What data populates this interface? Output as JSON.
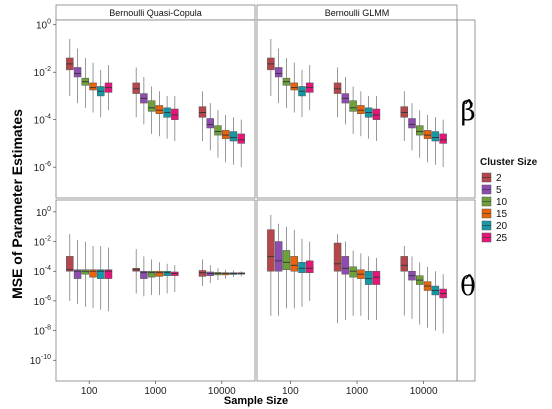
{
  "chart_data": {
    "type": "boxplot",
    "ylabel": "MSE of Parameter Estimates",
    "xlabel": "Sample Size",
    "y_scale": "log10",
    "ylim_exponent_top": [
      -7,
      0
    ],
    "ylim_exponent_bottom": [
      -11,
      0
    ],
    "x_categories": [
      "100",
      "1000",
      "10000"
    ],
    "column_panels": [
      "Bernoulli Quasi-Copula",
      "Bernoulli GLMM"
    ],
    "row_panels": [
      "β̂",
      "θ̂"
    ],
    "y_ticks_top": [
      "10^0",
      "10^-2",
      "10^-4",
      "10^-6"
    ],
    "y_ticks_bottom": [
      "10^0",
      "10^-2",
      "10^-4",
      "10^-6",
      "10^-8",
      "10^-10"
    ],
    "legend": {
      "title": "Cluster Size",
      "items": [
        {
          "label": "2",
          "color": "#B5464B"
        },
        {
          "label": "5",
          "color": "#8E4CB0"
        },
        {
          "label": "10",
          "color": "#6FA13A"
        },
        {
          "label": "15",
          "color": "#E8630A"
        },
        {
          "label": "20",
          "color": "#1597A6"
        },
        {
          "label": "25",
          "color": "#E6157A"
        }
      ]
    },
    "panels": [
      {
        "name": "Bernoulli Quasi-Copula / β̂",
        "groups": [
          {
            "x": "100",
            "boxes": [
              {
                "cluster": "2",
                "q1": -1.9,
                "median": -1.65,
                "q3": -1.4,
                "whisker_low": -3.0,
                "whisker_high": -0.6
              },
              {
                "cluster": "5",
                "q1": -2.2,
                "median": -2.05,
                "q3": -1.8,
                "whisker_low": -3.3,
                "whisker_high": -1.0
              },
              {
                "cluster": "10",
                "q1": -2.55,
                "median": -2.4,
                "q3": -2.25,
                "whisker_low": -3.5,
                "whisker_high": -1.4
              },
              {
                "cluster": "15",
                "q1": -2.75,
                "median": -2.65,
                "q3": -2.45,
                "whisker_low": -3.7,
                "whisker_high": -1.6
              },
              {
                "cluster": "20",
                "q1": -3.0,
                "median": -2.8,
                "q3": -2.6,
                "whisker_low": -3.9,
                "whisker_high": -1.9
              },
              {
                "cluster": "25",
                "q1": -2.85,
                "median": -2.65,
                "q3": -2.45,
                "whisker_low": -3.6,
                "whisker_high": -1.7
              }
            ]
          },
          {
            "x": "1000",
            "boxes": [
              {
                "cluster": "2",
                "q1": -2.9,
                "median": -2.7,
                "q3": -2.45,
                "whisker_low": -3.9,
                "whisker_high": -1.8
              },
              {
                "cluster": "5",
                "q1": -3.3,
                "median": -3.1,
                "q3": -2.9,
                "whisker_low": -4.2,
                "whisker_high": -2.2
              },
              {
                "cluster": "10",
                "q1": -3.65,
                "median": -3.5,
                "q3": -3.2,
                "whisker_low": -4.6,
                "whisker_high": -2.6
              },
              {
                "cluster": "15",
                "q1": -3.75,
                "median": -3.6,
                "q3": -3.4,
                "whisker_low": -4.7,
                "whisker_high": -2.8
              },
              {
                "cluster": "20",
                "q1": -3.9,
                "median": -3.7,
                "q3": -3.5,
                "whisker_low": -4.8,
                "whisker_high": -3.0
              },
              {
                "cluster": "25",
                "q1": -4.0,
                "median": -3.8,
                "q3": -3.55,
                "whisker_low": -4.9,
                "whisker_high": -3.0
              }
            ]
          },
          {
            "x": "10000",
            "boxes": [
              {
                "cluster": "2",
                "q1": -3.9,
                "median": -3.7,
                "q3": -3.45,
                "whisker_low": -4.9,
                "whisker_high": -2.8
              },
              {
                "cluster": "5",
                "q1": -4.35,
                "median": -4.2,
                "q3": -3.95,
                "whisker_low": -5.3,
                "whisker_high": -3.3
              },
              {
                "cluster": "10",
                "q1": -4.65,
                "median": -4.5,
                "q3": -4.25,
                "whisker_low": -5.6,
                "whisker_high": -3.6
              },
              {
                "cluster": "15",
                "q1": -4.8,
                "median": -4.65,
                "q3": -4.45,
                "whisker_low": -5.8,
                "whisker_high": -3.8
              },
              {
                "cluster": "20",
                "q1": -4.9,
                "median": -4.75,
                "q3": -4.5,
                "whisker_low": -5.9,
                "whisker_high": -3.9
              },
              {
                "cluster": "25",
                "q1": -5.0,
                "median": -4.85,
                "q3": -4.6,
                "whisker_low": -6.0,
                "whisker_high": -4.0
              }
            ]
          }
        ]
      },
      {
        "name": "Bernoulli GLMM / β̂",
        "groups": [
          {
            "x": "100",
            "boxes": [
              {
                "cluster": "2",
                "q1": -1.9,
                "median": -1.65,
                "q3": -1.4,
                "whisker_low": -3.0,
                "whisker_high": -0.6
              },
              {
                "cluster": "5",
                "q1": -2.2,
                "median": -2.05,
                "q3": -1.8,
                "whisker_low": -3.3,
                "whisker_high": -1.0
              },
              {
                "cluster": "10",
                "q1": -2.55,
                "median": -2.4,
                "q3": -2.25,
                "whisker_low": -3.5,
                "whisker_high": -1.4
              },
              {
                "cluster": "15",
                "q1": -2.75,
                "median": -2.65,
                "q3": -2.45,
                "whisker_low": -3.7,
                "whisker_high": -1.6
              },
              {
                "cluster": "20",
                "q1": -3.0,
                "median": -2.8,
                "q3": -2.6,
                "whisker_low": -3.9,
                "whisker_high": -1.9
              },
              {
                "cluster": "25",
                "q1": -2.85,
                "median": -2.65,
                "q3": -2.45,
                "whisker_low": -3.6,
                "whisker_high": -1.7
              }
            ]
          },
          {
            "x": "1000",
            "boxes": [
              {
                "cluster": "2",
                "q1": -2.9,
                "median": -2.7,
                "q3": -2.45,
                "whisker_low": -3.9,
                "whisker_high": -1.8
              },
              {
                "cluster": "5",
                "q1": -3.3,
                "median": -3.1,
                "q3": -2.9,
                "whisker_low": -4.2,
                "whisker_high": -2.2
              },
              {
                "cluster": "10",
                "q1": -3.65,
                "median": -3.5,
                "q3": -3.2,
                "whisker_low": -4.6,
                "whisker_high": -2.6
              },
              {
                "cluster": "15",
                "q1": -3.75,
                "median": -3.6,
                "q3": -3.4,
                "whisker_low": -4.7,
                "whisker_high": -2.8
              },
              {
                "cluster": "20",
                "q1": -3.9,
                "median": -3.7,
                "q3": -3.5,
                "whisker_low": -4.8,
                "whisker_high": -3.0
              },
              {
                "cluster": "25",
                "q1": -4.0,
                "median": -3.8,
                "q3": -3.55,
                "whisker_low": -4.9,
                "whisker_high": -3.0
              }
            ]
          },
          {
            "x": "10000",
            "boxes": [
              {
                "cluster": "2",
                "q1": -3.9,
                "median": -3.7,
                "q3": -3.45,
                "whisker_low": -4.9,
                "whisker_high": -2.8
              },
              {
                "cluster": "5",
                "q1": -4.35,
                "median": -4.2,
                "q3": -3.95,
                "whisker_low": -5.3,
                "whisker_high": -3.3
              },
              {
                "cluster": "10",
                "q1": -4.65,
                "median": -4.5,
                "q3": -4.25,
                "whisker_low": -5.6,
                "whisker_high": -3.6
              },
              {
                "cluster": "15",
                "q1": -4.8,
                "median": -4.65,
                "q3": -4.45,
                "whisker_low": -5.8,
                "whisker_high": -3.8
              },
              {
                "cluster": "20",
                "q1": -4.9,
                "median": -4.75,
                "q3": -4.5,
                "whisker_low": -5.9,
                "whisker_high": -3.9
              },
              {
                "cluster": "25",
                "q1": -5.0,
                "median": -4.85,
                "q3": -4.6,
                "whisker_low": -6.0,
                "whisker_high": -4.0
              }
            ]
          }
        ]
      },
      {
        "name": "Bernoulli Quasi-Copula / θ̂",
        "groups": [
          {
            "x": "100",
            "boxes": [
              {
                "cluster": "2",
                "q1": -4.0,
                "median": -3.9,
                "q3": -3.0,
                "whisker_low": -6.0,
                "whisker_high": -1.5
              },
              {
                "cluster": "5",
                "q1": -4.5,
                "median": -4.0,
                "q3": -3.9,
                "whisker_low": -6.2,
                "whisker_high": -1.9
              },
              {
                "cluster": "10",
                "q1": -4.2,
                "median": -4.0,
                "q3": -3.9,
                "whisker_low": -6.4,
                "whisker_high": -2.0
              },
              {
                "cluster": "15",
                "q1": -4.4,
                "median": -4.0,
                "q3": -3.9,
                "whisker_low": -6.5,
                "whisker_high": -2.3
              },
              {
                "cluster": "20",
                "q1": -4.5,
                "median": -4.0,
                "q3": -3.9,
                "whisker_low": -6.6,
                "whisker_high": -2.3
              },
              {
                "cluster": "25",
                "q1": -4.5,
                "median": -4.0,
                "q3": -3.9,
                "whisker_low": -6.7,
                "whisker_high": -2.4
              }
            ]
          },
          {
            "x": "1000",
            "boxes": [
              {
                "cluster": "2",
                "q1": -4.0,
                "median": -3.9,
                "q3": -3.8,
                "whisker_low": -5.5,
                "whisker_high": -2.5
              },
              {
                "cluster": "5",
                "q1": -4.5,
                "median": -4.1,
                "q3": -4.0,
                "whisker_low": -5.7,
                "whisker_high": -3.0
              },
              {
                "cluster": "10",
                "q1": -4.4,
                "median": -4.1,
                "q3": -4.0,
                "whisker_low": -5.6,
                "whisker_high": -3.2
              },
              {
                "cluster": "15",
                "q1": -4.35,
                "median": -4.1,
                "q3": -4.0,
                "whisker_low": -5.6,
                "whisker_high": -3.4
              },
              {
                "cluster": "20",
                "q1": -4.3,
                "median": -4.1,
                "q3": -4.0,
                "whisker_low": -5.5,
                "whisker_high": -3.5
              },
              {
                "cluster": "25",
                "q1": -4.3,
                "median": -4.15,
                "q3": -4.05,
                "whisker_low": -5.4,
                "whisker_high": -3.6
              }
            ]
          },
          {
            "x": "10000",
            "boxes": [
              {
                "cluster": "2",
                "q1": -4.35,
                "median": -4.1,
                "q3": -3.95,
                "whisker_low": -5.0,
                "whisker_high": -3.2
              },
              {
                "cluster": "5",
                "q1": -4.3,
                "median": -4.15,
                "q3": -4.05,
                "whisker_low": -4.8,
                "whisker_high": -3.6
              },
              {
                "cluster": "10",
                "q1": -4.25,
                "median": -4.15,
                "q3": -4.08,
                "whisker_low": -4.6,
                "whisker_high": -3.8
              },
              {
                "cluster": "15",
                "q1": -4.25,
                "median": -4.15,
                "q3": -4.1,
                "whisker_low": -4.5,
                "whisker_high": -3.9
              },
              {
                "cluster": "20",
                "q1": -4.22,
                "median": -4.15,
                "q3": -4.1,
                "whisker_low": -4.4,
                "whisker_high": -3.95
              },
              {
                "cluster": "25",
                "q1": -4.2,
                "median": -4.15,
                "q3": -4.1,
                "whisker_low": -4.35,
                "whisker_high": -4.0
              }
            ]
          }
        ]
      },
      {
        "name": "Bernoulli GLMM / θ̂",
        "groups": [
          {
            "x": "100",
            "boxes": [
              {
                "cluster": "2",
                "q1": -4.0,
                "median": -3.0,
                "q3": -1.2,
                "whisker_low": -7.0,
                "whisker_high": -0.2
              },
              {
                "cluster": "5",
                "q1": -4.0,
                "median": -3.3,
                "q3": -2.0,
                "whisker_low": -7.0,
                "whisker_high": -0.8
              },
              {
                "cluster": "10",
                "q1": -3.9,
                "median": -3.4,
                "q3": -2.6,
                "whisker_low": -6.5,
                "whisker_high": -1.0
              },
              {
                "cluster": "15",
                "q1": -4.0,
                "median": -3.6,
                "q3": -3.0,
                "whisker_low": -6.5,
                "whisker_high": -1.2
              },
              {
                "cluster": "20",
                "q1": -4.1,
                "median": -3.8,
                "q3": -3.4,
                "whisker_low": -6.4,
                "whisker_high": -1.8
              },
              {
                "cluster": "25",
                "q1": -4.1,
                "median": -3.8,
                "q3": -3.3,
                "whisker_low": -6.0,
                "whisker_high": -2.0
              }
            ]
          },
          {
            "x": "1000",
            "boxes": [
              {
                "cluster": "2",
                "q1": -4.0,
                "median": -3.5,
                "q3": -2.1,
                "whisker_low": -7.5,
                "whisker_high": -1.5
              },
              {
                "cluster": "5",
                "q1": -4.2,
                "median": -3.8,
                "q3": -3.0,
                "whisker_low": -7.3,
                "whisker_high": -2.0
              },
              {
                "cluster": "10",
                "q1": -4.4,
                "median": -4.0,
                "q3": -3.7,
                "whisker_low": -7.0,
                "whisker_high": -2.6
              },
              {
                "cluster": "15",
                "q1": -4.5,
                "median": -4.2,
                "q3": -3.9,
                "whisker_low": -7.0,
                "whisker_high": -2.8
              },
              {
                "cluster": "20",
                "q1": -4.9,
                "median": -4.5,
                "q3": -4.0,
                "whisker_low": -7.3,
                "whisker_high": -3.0
              },
              {
                "cluster": "25",
                "q1": -4.9,
                "median": -4.4,
                "q3": -4.0,
                "whisker_low": -7.3,
                "whisker_high": -3.1
              }
            ]
          },
          {
            "x": "10000",
            "boxes": [
              {
                "cluster": "2",
                "q1": -4.0,
                "median": -3.6,
                "q3": -3.0,
                "whisker_low": -7.0,
                "whisker_high": -2.3
              },
              {
                "cluster": "5",
                "q1": -4.6,
                "median": -4.3,
                "q3": -4.0,
                "whisker_low": -7.2,
                "whisker_high": -3.0
              },
              {
                "cluster": "10",
                "q1": -4.9,
                "median": -4.6,
                "q3": -4.3,
                "whisker_low": -7.6,
                "whisker_high": -3.4
              },
              {
                "cluster": "15",
                "q1": -5.3,
                "median": -5.0,
                "q3": -4.7,
                "whisker_low": -7.8,
                "whisker_high": -3.7
              },
              {
                "cluster": "20",
                "q1": -5.6,
                "median": -5.3,
                "q3": -5.0,
                "whisker_low": -8.0,
                "whisker_high": -4.0
              },
              {
                "cluster": "25",
                "q1": -5.8,
                "median": -5.5,
                "q3": -5.2,
                "whisker_low": -8.2,
                "whisker_high": -4.2
              }
            ]
          }
        ]
      }
    ]
  }
}
